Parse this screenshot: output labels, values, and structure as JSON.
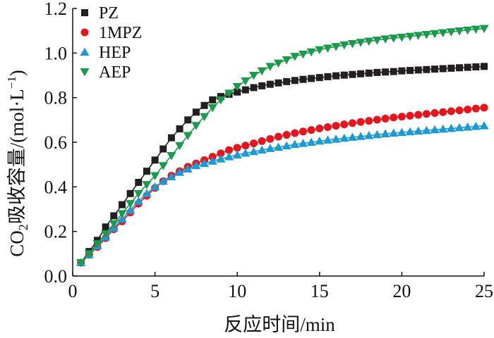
{
  "chart_data": {
    "type": "line",
    "xlabel": "反应时间/min",
    "ylabel_main": "CO",
    "ylabel_sub": "2",
    "ylabel_rest": "吸收容量/(mol·L",
    "ylabel_sup": "−1",
    "ylabel_end": ")",
    "xlim": [
      0,
      25
    ],
    "ylim": [
      0,
      1.2
    ],
    "x_ticks": [
      "0",
      "5",
      "10",
      "15",
      "20",
      "25"
    ],
    "y_ticks": [
      "0.0",
      "0.2",
      "0.4",
      "0.6",
      "0.8",
      "1.0",
      "1.2"
    ],
    "grid": false,
    "legend_position": "top-left",
    "series": [
      {
        "name": "PZ",
        "color": "#231f20",
        "marker": "square",
        "x": [
          0.5,
          1,
          1.5,
          2,
          2.5,
          3,
          3.5,
          4,
          4.5,
          5,
          5.5,
          6,
          6.5,
          7,
          7.5,
          8,
          8.5,
          9,
          9.5,
          10,
          10.5,
          11,
          11.5,
          12,
          12.5,
          13,
          13.5,
          14,
          14.5,
          15,
          15.5,
          16,
          16.5,
          17,
          17.5,
          18,
          18.5,
          19,
          19.5,
          20,
          20.5,
          21,
          21.5,
          22,
          22.5,
          23,
          23.5,
          24,
          24.5,
          25
        ],
        "values": [
          0.06,
          0.11,
          0.16,
          0.22,
          0.27,
          0.32,
          0.37,
          0.42,
          0.47,
          0.52,
          0.57,
          0.62,
          0.66,
          0.7,
          0.735,
          0.765,
          0.79,
          0.805,
          0.815,
          0.825,
          0.835,
          0.845,
          0.853,
          0.86,
          0.866,
          0.872,
          0.877,
          0.882,
          0.886,
          0.89,
          0.894,
          0.898,
          0.901,
          0.904,
          0.907,
          0.91,
          0.913,
          0.915,
          0.917,
          0.92,
          0.922,
          0.924,
          0.926,
          0.928,
          0.93,
          0.932,
          0.934,
          0.936,
          0.938,
          0.94
        ]
      },
      {
        "name": "1MPZ",
        "color": "#e8141b",
        "marker": "circle",
        "x": [
          0.5,
          1,
          1.5,
          2,
          2.5,
          3,
          3.5,
          4,
          4.5,
          5,
          5.5,
          6,
          6.5,
          7,
          7.5,
          8,
          8.5,
          9,
          9.5,
          10,
          10.5,
          11,
          11.5,
          12,
          12.5,
          13,
          13.5,
          14,
          14.5,
          15,
          15.5,
          16,
          16.5,
          17,
          17.5,
          18,
          18.5,
          19,
          19.5,
          20,
          20.5,
          21,
          21.5,
          22,
          22.5,
          23,
          23.5,
          24,
          24.5,
          25
        ],
        "values": [
          0.06,
          0.095,
          0.13,
          0.17,
          0.21,
          0.245,
          0.285,
          0.325,
          0.36,
          0.395,
          0.425,
          0.45,
          0.47,
          0.49,
          0.505,
          0.52,
          0.535,
          0.55,
          0.565,
          0.575,
          0.585,
          0.595,
          0.605,
          0.615,
          0.625,
          0.633,
          0.641,
          0.648,
          0.655,
          0.662,
          0.668,
          0.674,
          0.68,
          0.686,
          0.691,
          0.696,
          0.701,
          0.706,
          0.711,
          0.715,
          0.719,
          0.723,
          0.727,
          0.731,
          0.735,
          0.739,
          0.743,
          0.747,
          0.751,
          0.755
        ]
      },
      {
        "name": "HEP",
        "color": "#1b9ad6",
        "marker": "triangle-up",
        "x": [
          0.5,
          1,
          1.5,
          2,
          2.5,
          3,
          3.5,
          4,
          4.5,
          5,
          5.5,
          6,
          6.5,
          7,
          7.5,
          8,
          8.5,
          9,
          9.5,
          10,
          10.5,
          11,
          11.5,
          12,
          12.5,
          13,
          13.5,
          14,
          14.5,
          15,
          15.5,
          16,
          16.5,
          17,
          17.5,
          18,
          18.5,
          19,
          19.5,
          20,
          20.5,
          21,
          21.5,
          22,
          22.5,
          23,
          23.5,
          24,
          24.5,
          25
        ],
        "values": [
          0.06,
          0.095,
          0.135,
          0.175,
          0.215,
          0.255,
          0.295,
          0.335,
          0.37,
          0.4,
          0.425,
          0.445,
          0.465,
          0.48,
          0.495,
          0.505,
          0.515,
          0.525,
          0.535,
          0.543,
          0.551,
          0.558,
          0.565,
          0.572,
          0.578,
          0.584,
          0.59,
          0.595,
          0.6,
          0.605,
          0.61,
          0.614,
          0.618,
          0.622,
          0.626,
          0.63,
          0.634,
          0.638,
          0.641,
          0.644,
          0.647,
          0.65,
          0.653,
          0.656,
          0.659,
          0.662,
          0.665,
          0.668,
          0.671,
          0.674
        ]
      },
      {
        "name": "AEP",
        "color": "#1a9a4b",
        "marker": "triangle-down",
        "x": [
          0.5,
          1,
          1.5,
          2,
          2.5,
          3,
          3.5,
          4,
          4.5,
          5,
          5.5,
          6,
          6.5,
          7,
          7.5,
          8,
          8.5,
          9,
          9.5,
          10,
          10.5,
          11,
          11.5,
          12,
          12.5,
          13,
          13.5,
          14,
          14.5,
          15,
          15.5,
          16,
          16.5,
          17,
          17.5,
          18,
          18.5,
          19,
          19.5,
          20,
          20.5,
          21,
          21.5,
          22,
          22.5,
          23,
          23.5,
          24,
          24.5,
          25
        ],
        "values": [
          0.06,
          0.1,
          0.145,
          0.19,
          0.235,
          0.28,
          0.325,
          0.37,
          0.41,
          0.45,
          0.495,
          0.54,
          0.585,
          0.63,
          0.675,
          0.715,
          0.755,
          0.79,
          0.82,
          0.85,
          0.875,
          0.9,
          0.92,
          0.94,
          0.955,
          0.97,
          0.985,
          0.995,
          1.005,
          1.015,
          1.022,
          1.029,
          1.036,
          1.042,
          1.048,
          1.053,
          1.058,
          1.063,
          1.067,
          1.071,
          1.075,
          1.079,
          1.083,
          1.087,
          1.091,
          1.095,
          1.099,
          1.103,
          1.107,
          1.11
        ]
      }
    ]
  }
}
